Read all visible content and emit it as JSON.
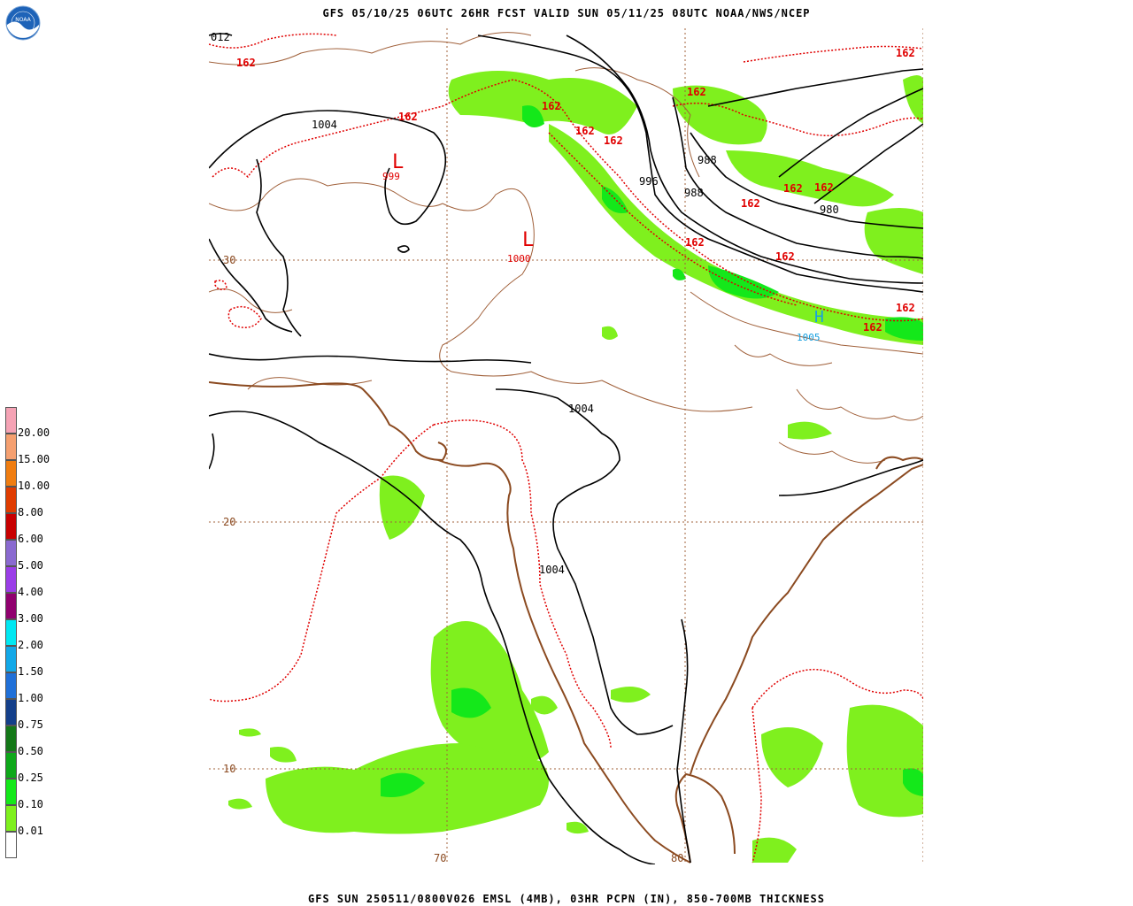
{
  "header": {
    "title": "GFS 05/10/25 06UTC 26HR FCST VALID SUN 05/11/25 08UTC NOAA/NWS/NCEP"
  },
  "footer": {
    "caption": "GFS SUN 250511/0800V026 EMSL (4MB), 03HR PCPN (IN), 850-700MB THICKNESS"
  },
  "logo": {
    "text": "NOAA",
    "icon": "noaa-logo-icon"
  },
  "legend": {
    "labels": [
      "20.00",
      "15.00",
      "10.00",
      "8.00",
      "6.00",
      "5.00",
      "4.00",
      "3.00",
      "2.00",
      "1.50",
      "1.00",
      "0.75",
      "0.50",
      "0.25",
      "0.10",
      "0.01"
    ],
    "colors": [
      "#f5a3b5",
      "#f5a070",
      "#f07d10",
      "#e03c00",
      "#c80000",
      "#8a6ad0",
      "#9b3ee8",
      "#90006e",
      "#00e8f2",
      "#12a8e8",
      "#2070d8",
      "#143f8a",
      "#147818",
      "#0ea81a",
      "#14e81a",
      "#7ff01e",
      "#ffffff"
    ]
  },
  "axes": {
    "lat_labels": [
      "30",
      "20",
      "10"
    ],
    "lon_labels": [
      "70",
      "80"
    ],
    "corner_label": "012"
  },
  "pressure_labels": {
    "isobars": [
      "1004",
      "1004",
      "1004",
      "996",
      "988",
      "988",
      "980"
    ],
    "lows": [
      {
        "symbol": "L",
        "value": "999"
      },
      {
        "symbol": "L",
        "value": "1000"
      }
    ],
    "high": {
      "symbol": "H",
      "value": "1005"
    }
  },
  "thickness_labels": [
    "162",
    "162",
    "162",
    "162",
    "162",
    "162",
    "162",
    "162",
    "162",
    "162",
    "162",
    "162",
    "162",
    "162"
  ],
  "colors": {
    "isobar": "#000000",
    "thickness": "#e00000",
    "coastline": "#8b4a20",
    "border": "#a0603a",
    "grid": "#a0603a",
    "precip_light": "#7ff01e",
    "precip_mid": "#14e81a",
    "high": "#18a0e0"
  }
}
